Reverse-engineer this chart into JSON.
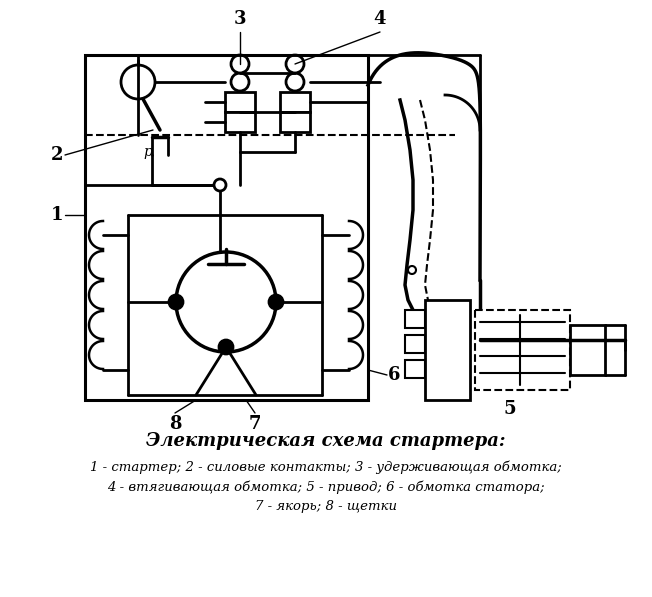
{
  "title": "Электрическая схема стартера:",
  "legend_line1": "1 - стартер; 2 - силовые контакты; 3 - удерживающая обмотка;",
  "legend_line2": "4 - втягивающая обмотка; 5 - привод; 6 - обмотка статора;",
  "legend_line3": "7 - якорь; 8 - щетки",
  "bg_color": "#ffffff",
  "line_color": "#000000",
  "title_fontsize": 13,
  "legend_fontsize": 9.5,
  "label_fontsize": 13
}
